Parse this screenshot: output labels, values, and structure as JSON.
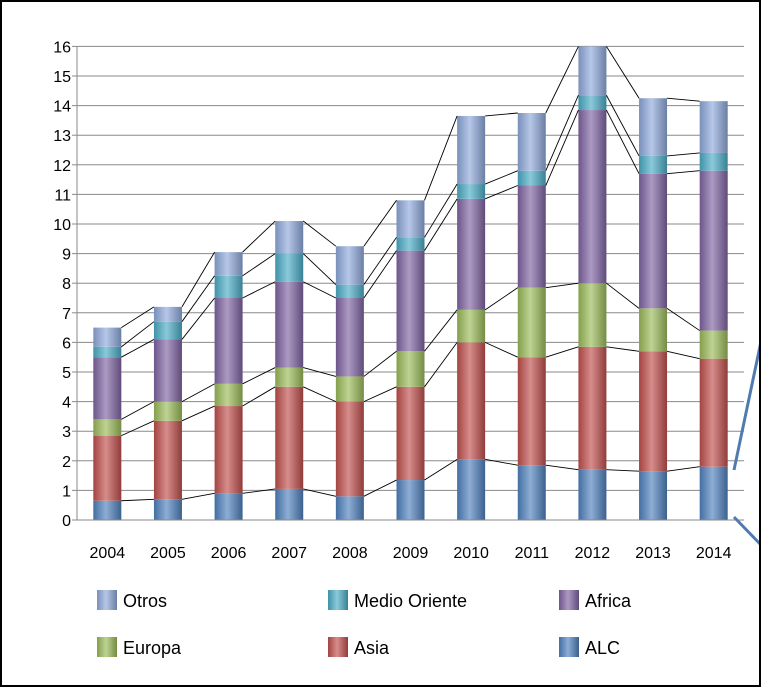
{
  "chart_data": {
    "type": "bar",
    "stacked": true,
    "categories": [
      "2004",
      "2005",
      "2006",
      "2007",
      "2008",
      "2009",
      "2010",
      "2011",
      "2012",
      "2013",
      "2014"
    ],
    "y_ticks": [
      "0",
      "1",
      "2",
      "3",
      "4",
      "5",
      "6",
      "7",
      "8",
      "9",
      "10",
      "11",
      "12",
      "13",
      "14",
      "15",
      "16"
    ],
    "ylim": [
      0,
      16
    ],
    "series": [
      {
        "name": "ALC",
        "color": "#4F81BD",
        "values": [
          0.65,
          0.7,
          0.9,
          1.05,
          0.8,
          1.35,
          2.05,
          1.85,
          1.7,
          1.65,
          1.8
        ]
      },
      {
        "name": "Asia",
        "color": "#C0504D",
        "values": [
          2.2,
          2.65,
          2.95,
          3.45,
          3.2,
          3.15,
          3.95,
          3.65,
          4.15,
          4.05,
          3.65
        ]
      },
      {
        "name": "Europa",
        "color": "#9BBB59",
        "values": [
          0.55,
          0.65,
          0.75,
          0.65,
          0.85,
          1.2,
          1.1,
          2.35,
          2.15,
          1.45,
          0.95
        ]
      },
      {
        "name": "Africa",
        "color": "#8064A2",
        "values": [
          2.1,
          2.1,
          2.9,
          2.9,
          2.65,
          3.4,
          3.75,
          3.45,
          5.85,
          4.55,
          5.4
        ]
      },
      {
        "name": "Medio Oriente",
        "color": "#4BACC6",
        "values": [
          0.35,
          0.6,
          0.75,
          0.95,
          0.45,
          0.45,
          0.5,
          0.5,
          0.5,
          0.6,
          0.6
        ]
      },
      {
        "name": "Otros",
        "color": "#8EA9DB",
        "values": [
          0.65,
          0.5,
          0.8,
          1.1,
          1.3,
          1.25,
          2.3,
          1.95,
          1.65,
          1.95,
          1.75
        ]
      }
    ],
    "legend": {
      "position": "bottom",
      "order": [
        "Otros",
        "Medio Oriente",
        "Africa",
        "Europa",
        "Asia",
        "ALC"
      ]
    },
    "grid": "horizontal",
    "title": "",
    "xlabel": "",
    "ylabel": ""
  }
}
